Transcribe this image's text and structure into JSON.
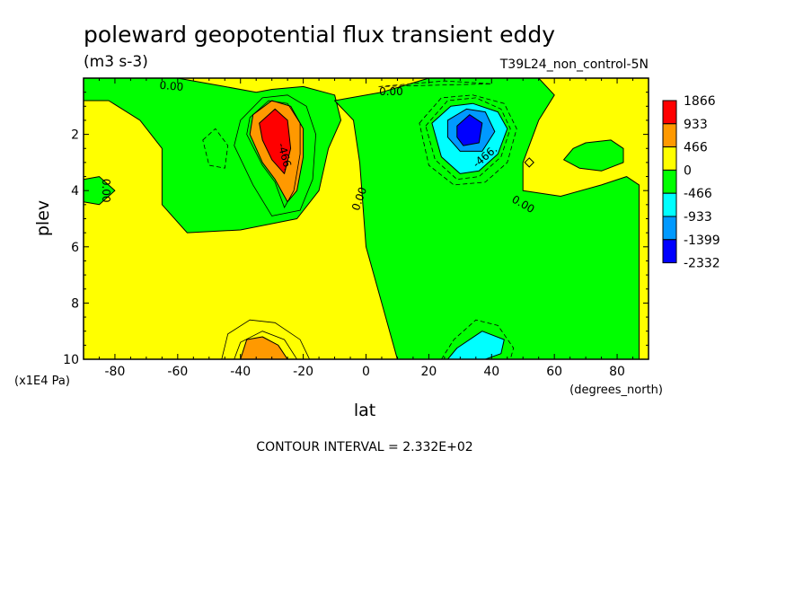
{
  "chart_data": {
    "type": "heatmap",
    "title": "poleward geopotential flux transient eddy",
    "units": "(m3 s-3)",
    "dataset": "T39L24_non_control-5N",
    "xlabel": "lat",
    "ylabel": "plev",
    "x_units": "(degrees_north)",
    "y_units": "(x1E4 Pa)",
    "xlim": [
      -90,
      90
    ],
    "ylim": [
      0,
      10
    ],
    "y_inverted": true,
    "x_ticks": [
      -80,
      -60,
      -40,
      -20,
      0,
      20,
      40,
      60,
      80
    ],
    "y_ticks": [
      2,
      4,
      6,
      8,
      10
    ],
    "colorbar": {
      "levels": [
        "1866",
        "933",
        "466",
        "0",
        "-466",
        "-933",
        "-1399",
        "-2332"
      ],
      "colors": [
        "#ff0000",
        "#ff9900",
        "#ffff00",
        "#00ff00",
        "#00ffff",
        "#0099ff",
        "#0000ff"
      ]
    },
    "background_color": "#ffff00",
    "regions": [
      {
        "color": "#00ff00",
        "points": [
          [
            -90,
            0
          ],
          [
            -60,
            0
          ],
          [
            -45,
            0.3
          ],
          [
            -35,
            0.5
          ],
          [
            -30,
            0.4
          ],
          [
            -20,
            0.3
          ],
          [
            -10,
            0.6
          ],
          [
            -8,
            1.5
          ],
          [
            -12,
            2.5
          ],
          [
            -15,
            4
          ],
          [
            -22,
            5
          ],
          [
            -40,
            5.4
          ],
          [
            -57,
            5.5
          ],
          [
            -65,
            4.5
          ],
          [
            -65,
            2.5
          ],
          [
            -72,
            1.5
          ],
          [
            -82,
            0.8
          ],
          [
            -90,
            0.8
          ]
        ]
      },
      {
        "color": "#00ff00",
        "points": [
          [
            -90,
            3.6
          ],
          [
            -85,
            3.5
          ],
          [
            -80,
            4
          ],
          [
            -85,
            4.5
          ],
          [
            -90,
            4.4
          ]
        ]
      },
      {
        "color": "#00ff00",
        "points": [
          [
            -10,
            0.8
          ],
          [
            5,
            0.5
          ],
          [
            20,
            0
          ],
          [
            55,
            0
          ],
          [
            60,
            0.6
          ],
          [
            55,
            1.5
          ],
          [
            50,
            3
          ],
          [
            50,
            4
          ],
          [
            62,
            4.2
          ],
          [
            75,
            3.8
          ],
          [
            83,
            3.5
          ],
          [
            87,
            3.8
          ],
          [
            87,
            10
          ],
          [
            10,
            10
          ],
          [
            5,
            8
          ],
          [
            0,
            6
          ],
          [
            -2,
            3
          ],
          [
            -4,
            1.5
          ]
        ]
      },
      {
        "color": "#00ff00",
        "points": [
          [
            66,
            2.5
          ],
          [
            70,
            2.3
          ],
          [
            78,
            2.2
          ],
          [
            82,
            2.5
          ],
          [
            82,
            3
          ],
          [
            75,
            3.3
          ],
          [
            68,
            3.2
          ],
          [
            63,
            2.9
          ]
        ]
      },
      {
        "color": "#ff9900",
        "points": [
          [
            -36,
            1.3
          ],
          [
            -30,
            0.8
          ],
          [
            -24,
            1
          ],
          [
            -20,
            1.8
          ],
          [
            -20,
            2.8
          ],
          [
            -22,
            4
          ],
          [
            -25,
            4.4
          ],
          [
            -29,
            3.6
          ],
          [
            -33,
            3
          ],
          [
            -37,
            2
          ]
        ]
      },
      {
        "color": "#ff0000",
        "points": [
          [
            -34,
            1.6
          ],
          [
            -29,
            1.1
          ],
          [
            -25,
            1.5
          ],
          [
            -24,
            2.5
          ],
          [
            -26,
            3.4
          ],
          [
            -30,
            2.9
          ],
          [
            -33,
            2.2
          ]
        ]
      },
      {
        "color": "#ff9900",
        "points": [
          [
            -40,
            10
          ],
          [
            -38,
            9.3
          ],
          [
            -33,
            9.2
          ],
          [
            -28,
            9.5
          ],
          [
            -25,
            10
          ]
        ]
      },
      {
        "color": "#00ffff",
        "points": [
          [
            21,
            1.6
          ],
          [
            27,
            1
          ],
          [
            34,
            0.9
          ],
          [
            42,
            1.2
          ],
          [
            45,
            1.8
          ],
          [
            42,
            2.7
          ],
          [
            36,
            3.3
          ],
          [
            30,
            3.4
          ],
          [
            24,
            2.8
          ]
        ]
      },
      {
        "color": "#0099ff",
        "points": [
          [
            26,
            1.5
          ],
          [
            32,
            1.1
          ],
          [
            38,
            1.2
          ],
          [
            41,
            1.9
          ],
          [
            37,
            2.6
          ],
          [
            30,
            2.6
          ],
          [
            26,
            2.1
          ]
        ]
      },
      {
        "color": "#0000ff",
        "points": [
          [
            29,
            1.7
          ],
          [
            33,
            1.3
          ],
          [
            37,
            1.6
          ],
          [
            36,
            2.3
          ],
          [
            31,
            2.4
          ],
          [
            29,
            2.1
          ]
        ]
      },
      {
        "color": "#00ffff",
        "points": [
          [
            26,
            10
          ],
          [
            29,
            9.6
          ],
          [
            37,
            9
          ],
          [
            44,
            9.3
          ],
          [
            43,
            9.8
          ],
          [
            38,
            10
          ]
        ]
      }
    ],
    "contours": [
      {
        "dashed": false,
        "points": [
          [
            -40,
            1.5
          ],
          [
            -33,
            0.7
          ],
          [
            -25,
            0.6
          ],
          [
            -19,
            1
          ],
          [
            -16,
            2
          ],
          [
            -17,
            3.6
          ],
          [
            -21,
            4.7
          ],
          [
            -30,
            4.9
          ],
          [
            -36,
            3.8
          ],
          [
            -42,
            2.4
          ]
        ]
      },
      {
        "dashed": false,
        "points": [
          [
            -37,
            1.4
          ],
          [
            -31,
            0.8
          ],
          [
            -25,
            0.9
          ],
          [
            -21,
            1.6
          ],
          [
            -21,
            2.7
          ],
          [
            -23,
            4
          ],
          [
            -26,
            4.6
          ],
          [
            -29,
            3.7
          ],
          [
            -33,
            3.1
          ],
          [
            -38,
            2
          ]
        ]
      },
      {
        "dashed": false,
        "points": [
          [
            -46,
            10
          ],
          [
            -44,
            9.1
          ],
          [
            -37,
            8.6
          ],
          [
            -29,
            8.7
          ],
          [
            -21,
            9.3
          ],
          [
            -18,
            10
          ]
        ]
      },
      {
        "dashed": false,
        "points": [
          [
            -42,
            10
          ],
          [
            -40,
            9.4
          ],
          [
            -33,
            9
          ],
          [
            -26,
            9.3
          ],
          [
            -22,
            10
          ]
        ]
      },
      {
        "dashed": true,
        "points": [
          [
            17,
            1.6
          ],
          [
            24,
            0.7
          ],
          [
            34,
            0.6
          ],
          [
            44,
            0.9
          ],
          [
            48,
            1.8
          ],
          [
            45,
            3
          ],
          [
            38,
            3.7
          ],
          [
            28,
            3.8
          ],
          [
            20,
            3.1
          ]
        ]
      },
      {
        "dashed": true,
        "points": [
          [
            19,
            1.7
          ],
          [
            26,
            0.8
          ],
          [
            35,
            0.7
          ],
          [
            43,
            1.1
          ],
          [
            46,
            1.8
          ],
          [
            43,
            2.8
          ],
          [
            36,
            3.5
          ],
          [
            29,
            3.6
          ],
          [
            22,
            2.9
          ]
        ]
      },
      {
        "dashed": true,
        "points": [
          [
            24,
            10
          ],
          [
            28,
            9.3
          ],
          [
            35,
            8.6
          ],
          [
            42,
            8.8
          ],
          [
            47,
            9.6
          ],
          [
            46,
            10
          ]
        ]
      },
      {
        "dashed": true,
        "points": [
          [
            -52,
            2.2
          ],
          [
            -48,
            1.8
          ],
          [
            -44,
            2.4
          ],
          [
            -45,
            3.2
          ],
          [
            -50,
            3.1
          ]
        ]
      },
      {
        "dashed": true,
        "points": [
          [
            4,
            0.3
          ],
          [
            25,
            0.1
          ],
          [
            40,
            0.2
          ]
        ]
      }
    ],
    "diamond": [
      52,
      3
    ],
    "contour_labels": [
      {
        "text": "0.00",
        "lat": -62,
        "plev": 0.3,
        "angle": 5
      },
      {
        "text": "0.00",
        "lat": 8,
        "plev": 0.5,
        "angle": 0
      },
      {
        "text": "-466.",
        "lat": -26,
        "plev": 2.8,
        "angle": 75
      },
      {
        "text": "-466.",
        "lat": 38,
        "plev": 2.8,
        "angle": -40
      },
      {
        "text": "0.00",
        "lat": -83,
        "plev": 4,
        "angle": 90
      },
      {
        "text": "0.00",
        "lat": -2,
        "plev": 4.3,
        "angle": -70
      },
      {
        "text": "0.00",
        "lat": 50,
        "plev": 4.5,
        "angle": 30
      }
    ]
  },
  "footer": {
    "contour_interval": "CONTOUR INTERVAL = 2.332E+02"
  }
}
